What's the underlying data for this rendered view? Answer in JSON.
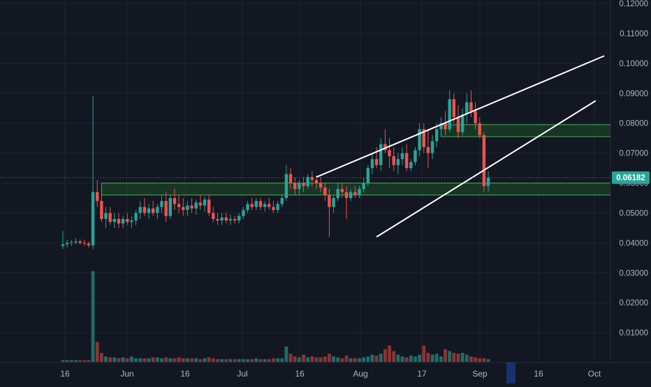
{
  "colors": {
    "background": "#131722",
    "grid": "#1f2430",
    "axis_text": "#b2b5be",
    "up": "#26a69a",
    "down": "#ef5350",
    "vol_up": "#1f6e66",
    "vol_down": "#8a3535",
    "zone_stroke": "#4caf50",
    "zone_fill": "#1e5b2c",
    "trendline": "#ffffff",
    "last_price_bg": "#26a69a",
    "last_price_line": "#26a69a",
    "axis_marker": "#2962ff"
  },
  "price_axis": {
    "ticks": [
      "0.12000",
      "0.11000",
      "0.10000",
      "0.09000",
      "0.08000",
      "0.07000",
      "0.06000",
      "0.05000",
      "0.04000",
      "0.03000",
      "0.02000",
      "0.01000"
    ],
    "last_price_label": "0.06182"
  },
  "time_axis": {
    "labels": [
      "16",
      "Jun",
      "16",
      "Jul",
      "16",
      "Aug",
      "17",
      "Sep",
      "16",
      "Oct"
    ]
  },
  "chart_data": {
    "type": "candlestick",
    "title": "",
    "interval": "1D",
    "x_range": [
      "May 16",
      "Oct 1"
    ],
    "y_range": [
      0.0,
      0.12
    ],
    "y_scale": "linear",
    "grid": true,
    "last_price": 0.06182,
    "series": [
      {
        "name": "",
        "ohlc_points": [
          [
            0.039,
            0.044,
            0.038,
            0.0395
          ],
          [
            0.0395,
            0.041,
            0.0385,
            0.04
          ],
          [
            0.04,
            0.041,
            0.039,
            0.0402
          ],
          [
            0.0402,
            0.0415,
            0.0395,
            0.0405
          ],
          [
            0.0405,
            0.0412,
            0.0395,
            0.04
          ],
          [
            0.04,
            0.041,
            0.039,
            0.0398
          ],
          [
            0.0398,
            0.0405,
            0.0385,
            0.0392
          ],
          [
            0.0392,
            0.089,
            0.038,
            0.057
          ],
          [
            0.057,
            0.061,
            0.052,
            0.054
          ],
          [
            0.054,
            0.056,
            0.047,
            0.048
          ],
          [
            0.048,
            0.052,
            0.045,
            0.05
          ],
          [
            0.05,
            0.052,
            0.046,
            0.047
          ],
          [
            0.047,
            0.05,
            0.045,
            0.048
          ],
          [
            0.048,
            0.05,
            0.045,
            0.0465
          ],
          [
            0.0465,
            0.049,
            0.045,
            0.048
          ],
          [
            0.048,
            0.05,
            0.046,
            0.047
          ],
          [
            0.047,
            0.049,
            0.045,
            0.0475
          ],
          [
            0.0475,
            0.051,
            0.046,
            0.05
          ],
          [
            0.05,
            0.054,
            0.048,
            0.052
          ],
          [
            0.052,
            0.055,
            0.049,
            0.05
          ],
          [
            0.05,
            0.053,
            0.048,
            0.0515
          ],
          [
            0.0515,
            0.054,
            0.049,
            0.05
          ],
          [
            0.05,
            0.053,
            0.048,
            0.052
          ],
          [
            0.052,
            0.056,
            0.05,
            0.054
          ],
          [
            0.054,
            0.057,
            0.047,
            0.049
          ],
          [
            0.049,
            0.056,
            0.048,
            0.055
          ],
          [
            0.055,
            0.058,
            0.051,
            0.053
          ],
          [
            0.053,
            0.056,
            0.05,
            0.052
          ],
          [
            0.052,
            0.055,
            0.049,
            0.051
          ],
          [
            0.051,
            0.054,
            0.049,
            0.0525
          ],
          [
            0.0525,
            0.055,
            0.05,
            0.0515
          ],
          [
            0.0515,
            0.0545,
            0.0495,
            0.0535
          ],
          [
            0.0535,
            0.056,
            0.051,
            0.0525
          ],
          [
            0.0525,
            0.0555,
            0.0505,
            0.0545
          ],
          [
            0.0545,
            0.056,
            0.049,
            0.05
          ],
          [
            0.05,
            0.052,
            0.047,
            0.048
          ],
          [
            0.048,
            0.05,
            0.046,
            0.0475
          ],
          [
            0.0475,
            0.05,
            0.046,
            0.0485
          ],
          [
            0.0485,
            0.05,
            0.0465,
            0.0475
          ],
          [
            0.0475,
            0.0495,
            0.046,
            0.048
          ],
          [
            0.048,
            0.049,
            0.0465,
            0.0475
          ],
          [
            0.0475,
            0.05,
            0.0465,
            0.049
          ],
          [
            0.049,
            0.052,
            0.048,
            0.051
          ],
          [
            0.051,
            0.054,
            0.05,
            0.053
          ],
          [
            0.053,
            0.055,
            0.051,
            0.052
          ],
          [
            0.052,
            0.055,
            0.051,
            0.054
          ],
          [
            0.054,
            0.055,
            0.051,
            0.052
          ],
          [
            0.052,
            0.054,
            0.0505,
            0.053
          ],
          [
            0.053,
            0.055,
            0.051,
            0.052
          ],
          [
            0.052,
            0.054,
            0.05,
            0.051
          ],
          [
            0.051,
            0.054,
            0.05,
            0.053
          ],
          [
            0.053,
            0.056,
            0.052,
            0.055
          ],
          [
            0.055,
            0.066,
            0.054,
            0.063
          ],
          [
            0.063,
            0.065,
            0.058,
            0.06
          ],
          [
            0.06,
            0.062,
            0.056,
            0.058
          ],
          [
            0.058,
            0.061,
            0.056,
            0.06
          ],
          [
            0.06,
            0.062,
            0.057,
            0.059
          ],
          [
            0.059,
            0.063,
            0.058,
            0.062
          ],
          [
            0.062,
            0.064,
            0.059,
            0.061
          ],
          [
            0.061,
            0.0625,
            0.058,
            0.06
          ],
          [
            0.06,
            0.062,
            0.057,
            0.0585
          ],
          [
            0.0585,
            0.06,
            0.054,
            0.056
          ],
          [
            0.056,
            0.058,
            0.042,
            0.052
          ],
          [
            0.052,
            0.056,
            0.05,
            0.055
          ],
          [
            0.055,
            0.06,
            0.054,
            0.058
          ],
          [
            0.058,
            0.06,
            0.055,
            0.057
          ],
          [
            0.057,
            0.059,
            0.048,
            0.055
          ],
          [
            0.055,
            0.058,
            0.054,
            0.057
          ],
          [
            0.057,
            0.059,
            0.055,
            0.056
          ],
          [
            0.056,
            0.059,
            0.055,
            0.058
          ],
          [
            0.058,
            0.062,
            0.057,
            0.06
          ],
          [
            0.06,
            0.066,
            0.059,
            0.065
          ],
          [
            0.065,
            0.07,
            0.063,
            0.068
          ],
          [
            0.068,
            0.072,
            0.065,
            0.066
          ],
          [
            0.066,
            0.075,
            0.064,
            0.073
          ],
          [
            0.073,
            0.078,
            0.07,
            0.071
          ],
          [
            0.071,
            0.075,
            0.065,
            0.069
          ],
          [
            0.069,
            0.072,
            0.064,
            0.066
          ],
          [
            0.066,
            0.07,
            0.063,
            0.068
          ],
          [
            0.068,
            0.072,
            0.066,
            0.07
          ],
          [
            0.07,
            0.073,
            0.064,
            0.065
          ],
          [
            0.065,
            0.068,
            0.064,
            0.067
          ],
          [
            0.067,
            0.072,
            0.066,
            0.071
          ],
          [
            0.071,
            0.08,
            0.069,
            0.078
          ],
          [
            0.078,
            0.08,
            0.07,
            0.072
          ],
          [
            0.072,
            0.078,
            0.065,
            0.07
          ],
          [
            0.07,
            0.076,
            0.068,
            0.074
          ],
          [
            0.074,
            0.08,
            0.072,
            0.078
          ],
          [
            0.078,
            0.082,
            0.076,
            0.08
          ],
          [
            0.08,
            0.084,
            0.076,
            0.078
          ],
          [
            0.078,
            0.091,
            0.077,
            0.088
          ],
          [
            0.088,
            0.09,
            0.08,
            0.082
          ],
          [
            0.082,
            0.086,
            0.075,
            0.077
          ],
          [
            0.077,
            0.085,
            0.076,
            0.083
          ],
          [
            0.083,
            0.09,
            0.08,
            0.087
          ],
          [
            0.087,
            0.091,
            0.082,
            0.084
          ],
          [
            0.084,
            0.087,
            0.078,
            0.08
          ],
          [
            0.08,
            0.082,
            0.075,
            0.076
          ],
          [
            0.076,
            0.077,
            0.057,
            0.059
          ],
          [
            0.059,
            0.064,
            0.057,
            0.0618
          ]
        ]
      },
      {
        "name": "",
        "volume_relative": [
          0.02,
          0.02,
          0.02,
          0.02,
          0.02,
          0.02,
          0.02,
          1.0,
          0.22,
          0.1,
          0.06,
          0.05,
          0.05,
          0.04,
          0.05,
          0.04,
          0.06,
          0.04,
          0.04,
          0.04,
          0.04,
          0.05,
          0.05,
          0.04,
          0.05,
          0.04,
          0.04,
          0.05,
          0.04,
          0.04,
          0.04,
          0.04,
          0.03,
          0.04,
          0.05,
          0.04,
          0.03,
          0.03,
          0.03,
          0.03,
          0.03,
          0.03,
          0.03,
          0.03,
          0.03,
          0.04,
          0.03,
          0.03,
          0.03,
          0.04,
          0.04,
          0.04,
          0.17,
          0.09,
          0.06,
          0.05,
          0.08,
          0.05,
          0.06,
          0.05,
          0.05,
          0.06,
          0.09,
          0.06,
          0.05,
          0.04,
          0.07,
          0.04,
          0.04,
          0.04,
          0.05,
          0.06,
          0.08,
          0.07,
          0.09,
          0.14,
          0.18,
          0.12,
          0.08,
          0.06,
          0.05,
          0.07,
          0.06,
          0.08,
          0.18,
          0.1,
          0.08,
          0.09,
          0.06,
          0.14,
          0.12,
          0.1,
          0.09,
          0.1,
          0.08,
          0.06,
          0.05,
          0.04,
          0.04,
          0.03
        ]
      }
    ],
    "zones": [
      {
        "from": 0.056,
        "to": 0.06,
        "x_start": "May 25",
        "x_end": "Sep 29"
      },
      {
        "from": 0.0755,
        "to": 0.0795,
        "x_start": "Aug 12",
        "x_end": "Sep 21"
      }
    ],
    "trendlines": [
      {
        "points": [
          [
            "Jul 14",
            0.062
          ],
          [
            "Sep 19",
            0.1025
          ]
        ]
      },
      {
        "points": [
          [
            "Jul 28",
            0.042
          ],
          [
            "Sep 17",
            0.0875
          ]
        ]
      }
    ]
  }
}
